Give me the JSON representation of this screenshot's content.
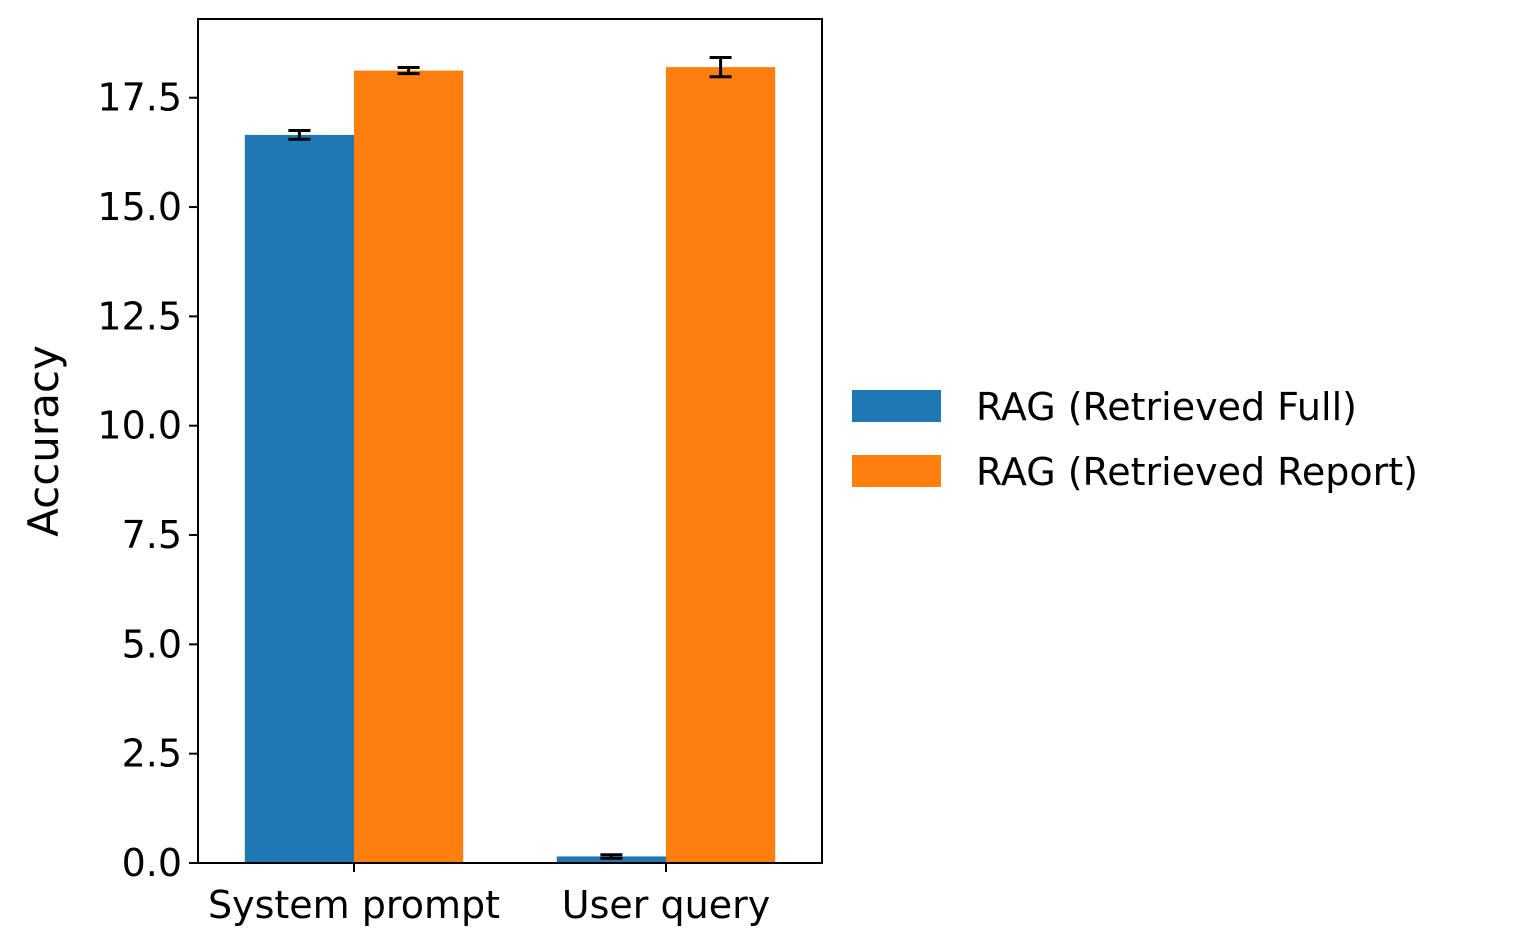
{
  "chart_data": {
    "type": "bar",
    "title": "",
    "xlabel": "",
    "ylabel": "Accuracy",
    "categories": [
      "System prompt",
      "User query"
    ],
    "series": [
      {
        "name": "RAG (Retrieved Full)",
        "color": "#1f77b4",
        "values": [
          16.65,
          0.15
        ],
        "errors": [
          0.1,
          0.04
        ]
      },
      {
        "name": "RAG (Retrieved Report)",
        "color": "#ff7f0e",
        "values": [
          18.12,
          18.2
        ],
        "errors": [
          0.07,
          0.22
        ]
      }
    ],
    "ylim": [
      0,
      19.3
    ],
    "yticks": [
      "0.0",
      "2.5",
      "5.0",
      "7.5",
      "10.0",
      "12.5",
      "15.0",
      "17.5"
    ],
    "grid": false,
    "legend_position": "right-outside-center"
  }
}
